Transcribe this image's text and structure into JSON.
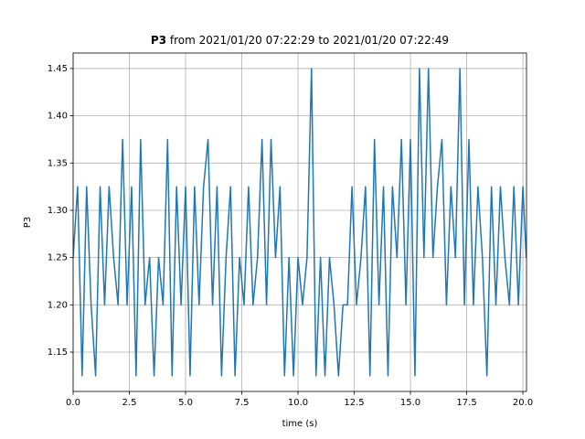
{
  "chart_data": {
    "type": "line",
    "title": {
      "name": "P3",
      "text": "from 2021/01/20 07:22:29 to 2021/01/20 07:22:49"
    },
    "xlabel": "time (s)",
    "ylabel": "P3",
    "x": [
      0,
      0.2,
      0.4,
      0.6,
      0.8,
      1.0,
      1.2,
      1.4,
      1.6,
      1.8,
      2.0,
      2.2,
      2.4,
      2.6,
      2.8,
      3.0,
      3.2,
      3.4,
      3.6,
      3.8,
      4.0,
      4.2,
      4.4,
      4.6,
      4.8,
      5.0,
      5.2,
      5.4,
      5.6,
      5.8,
      6.0,
      6.2,
      6.4,
      6.6,
      6.8,
      7.0,
      7.2,
      7.4,
      7.6,
      7.8,
      8.0,
      8.2,
      8.4,
      8.6,
      8.8,
      9.0,
      9.2,
      9.4,
      9.6,
      9.8,
      10.0,
      10.2,
      10.4,
      10.6,
      10.8,
      11.0,
      11.2,
      11.4,
      11.6,
      11.8,
      12.0,
      12.2,
      12.4,
      12.6,
      12.8,
      13.0,
      13.2,
      13.4,
      13.6,
      13.8,
      14.0,
      14.2,
      14.4,
      14.6,
      14.8,
      15.0,
      15.2,
      15.4,
      15.6,
      15.8,
      16.0,
      16.2,
      16.4,
      16.6,
      16.8,
      17.0,
      17.2,
      17.4,
      17.6,
      17.8,
      18.0,
      18.2,
      18.4,
      18.6,
      18.8,
      19.0,
      19.2,
      19.4,
      19.6,
      19.8,
      20.0,
      20.15
    ],
    "series": [
      {
        "name": "P3",
        "color": "#1f77b4",
        "values": [
          1.25,
          1.325,
          1.125,
          1.325,
          1.2,
          1.125,
          1.325,
          1.2,
          1.325,
          1.25,
          1.2,
          1.375,
          1.2,
          1.325,
          1.125,
          1.375,
          1.2,
          1.25,
          1.125,
          1.25,
          1.2,
          1.375,
          1.125,
          1.325,
          1.2,
          1.325,
          1.125,
          1.325,
          1.2,
          1.325,
          1.375,
          1.2,
          1.325,
          1.125,
          1.25,
          1.325,
          1.125,
          1.25,
          1.2,
          1.325,
          1.2,
          1.25,
          1.375,
          1.2,
          1.375,
          1.25,
          1.325,
          1.125,
          1.25,
          1.125,
          1.25,
          1.2,
          1.25,
          1.45,
          1.125,
          1.25,
          1.125,
          1.25,
          1.2,
          1.125,
          1.2,
          1.2,
          1.325,
          1.2,
          1.25,
          1.325,
          1.125,
          1.375,
          1.2,
          1.325,
          1.125,
          1.325,
          1.25,
          1.375,
          1.2,
          1.375,
          1.125,
          1.45,
          1.25,
          1.45,
          1.25,
          1.325,
          1.375,
          1.2,
          1.325,
          1.25,
          1.45,
          1.2,
          1.375,
          1.2,
          1.325,
          1.25,
          1.125,
          1.325,
          1.2,
          1.325,
          1.25,
          1.2,
          1.325,
          1.2,
          1.325,
          1.25
        ]
      }
    ],
    "xlim": [
      0,
      20.16
    ],
    "ylim": [
      1.1084,
      1.4664
    ],
    "xticks": [
      {
        "value": 0,
        "label": "0.0"
      },
      2.5,
      {
        "value": 5,
        "label": "5.0"
      },
      7.5,
      {
        "value": 10,
        "label": "10.0"
      },
      12.5,
      {
        "value": 15,
        "label": "15.0"
      },
      17.5,
      {
        "value": 20,
        "label": "20.0"
      }
    ],
    "yticks": [
      1.15,
      {
        "value": 1.2,
        "label": "1.20"
      },
      1.25,
      {
        "value": 1.3,
        "label": "1.30"
      },
      1.35,
      {
        "value": 1.4,
        "label": "1.40"
      },
      1.45
    ],
    "grid": true
  }
}
